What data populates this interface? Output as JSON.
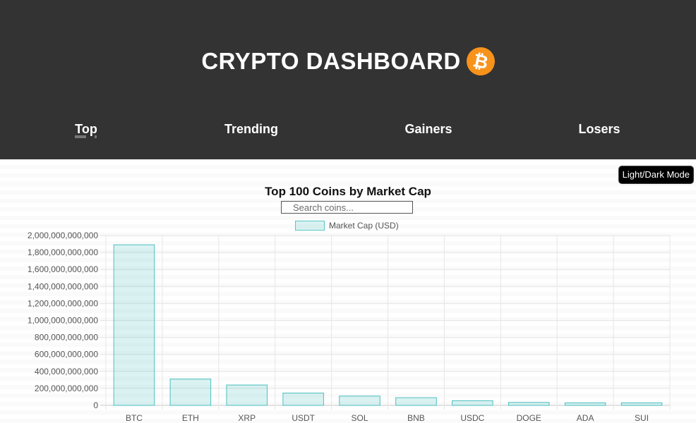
{
  "header": {
    "title": "CRYPTO DASHBOARD",
    "logo_icon": "bitcoin-icon",
    "logo_glyph": "₿",
    "logo_color": "#f7931a",
    "background": "#333333"
  },
  "nav": {
    "items": [
      {
        "label": "Top",
        "active": true
      },
      {
        "label": "Trending",
        "active": false
      },
      {
        "label": "Gainers",
        "active": false
      },
      {
        "label": "Losers",
        "active": false
      }
    ]
  },
  "toolbar": {
    "mode_toggle_label": "Light/Dark Mode"
  },
  "search": {
    "placeholder": "Search coins...",
    "value": ""
  },
  "chart_data": {
    "type": "bar",
    "title": "Top 100 Coins by Market Cap",
    "categories": [
      "BTC",
      "ETH",
      "XRP",
      "USDT",
      "SOL",
      "BNB",
      "USDC",
      "DOGE",
      "ADA",
      "SUI"
    ],
    "series": [
      {
        "name": "Market Cap (USD)",
        "values": [
          1890000000000,
          310000000000,
          240000000000,
          145000000000,
          110000000000,
          90000000000,
          55000000000,
          35000000000,
          30000000000,
          30000000000
        ]
      }
    ],
    "ylim": [
      0,
      2000000000000
    ],
    "yticks": [
      "2,000,000,000,000",
      "1,800,000,000,000",
      "1,600,000,000,000",
      "1,400,000,000,000",
      "1,200,000,000,000",
      "1,000,000,000,000",
      "800,000,000,000",
      "600,000,000,000",
      "400,000,000,000",
      "200,000,000,000",
      "0"
    ],
    "legend_position": "top",
    "grid": true,
    "bar_fill": "rgba(75,192,192,0.2)",
    "bar_border": "rgba(75,192,192,1)"
  }
}
